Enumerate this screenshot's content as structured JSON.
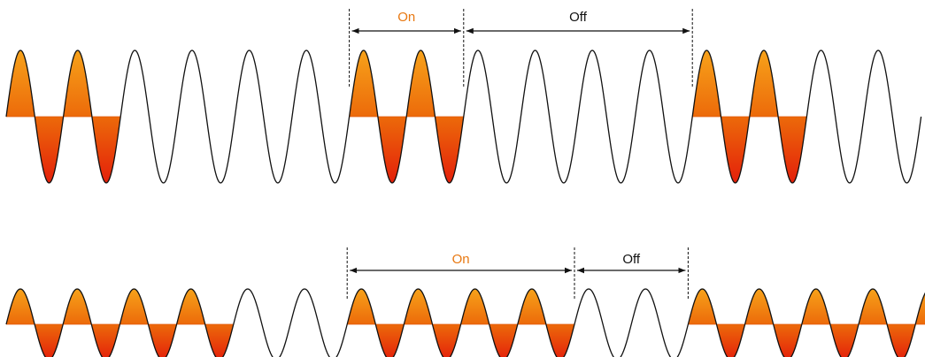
{
  "colors": {
    "on": "#e87811",
    "fill_top": "#f7a21a",
    "fill_mid": "#ec6a0a",
    "fill_bottom": "#e4200a",
    "wave": "#111111",
    "text": "#111111"
  },
  "diagrams": [
    {
      "on_label": "On",
      "off_label": "Off",
      "cycles": 16,
      "filled_cycles": [
        0,
        1,
        6,
        7,
        12,
        13
      ],
      "on_span_cycles": [
        6,
        8
      ],
      "off_span_cycles": [
        8,
        12
      ]
    },
    {
      "on_label": "On",
      "off_label": "Off",
      "cycles": 17,
      "filled_cycles": [
        0,
        1,
        2,
        3,
        6,
        7,
        8,
        9,
        12,
        13,
        14,
        15,
        16
      ],
      "on_span_cycles": [
        6,
        10
      ],
      "off_span_cycles": [
        10,
        12
      ]
    }
  ]
}
